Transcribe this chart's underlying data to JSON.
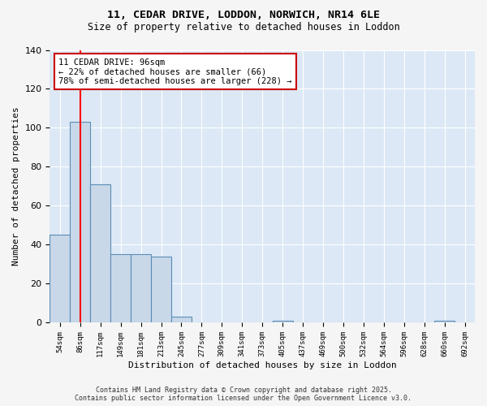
{
  "title1": "11, CEDAR DRIVE, LODDON, NORWICH, NR14 6LE",
  "title2": "Size of property relative to detached houses in Loddon",
  "xlabel": "Distribution of detached houses by size in Loddon",
  "ylabel": "Number of detached properties",
  "categories": [
    "54sqm",
    "86sqm",
    "117sqm",
    "149sqm",
    "181sqm",
    "213sqm",
    "245sqm",
    "277sqm",
    "309sqm",
    "341sqm",
    "373sqm",
    "405sqm",
    "437sqm",
    "469sqm",
    "500sqm",
    "532sqm",
    "564sqm",
    "596sqm",
    "628sqm",
    "660sqm",
    "692sqm"
  ],
  "values": [
    45,
    103,
    71,
    35,
    35,
    34,
    3,
    0,
    0,
    0,
    0,
    1,
    0,
    0,
    0,
    0,
    0,
    0,
    0,
    1,
    0
  ],
  "bar_color": "#c8d8e8",
  "bar_edge_color": "#5b8db8",
  "red_line_x": 1.0,
  "annotation_text": "11 CEDAR DRIVE: 96sqm\n← 22% of detached houses are smaller (66)\n78% of semi-detached houses are larger (228) →",
  "annotation_box_color": "#ffffff",
  "annotation_box_edge": "#cc0000",
  "ylim": [
    0,
    140
  ],
  "yticks": [
    0,
    20,
    40,
    60,
    80,
    100,
    120,
    140
  ],
  "bg_color": "#dce8f5",
  "grid_color": "#ffffff",
  "fig_bg_color": "#f5f5f5",
  "footer1": "Contains HM Land Registry data © Crown copyright and database right 2025.",
  "footer2": "Contains public sector information licensed under the Open Government Licence v3.0."
}
